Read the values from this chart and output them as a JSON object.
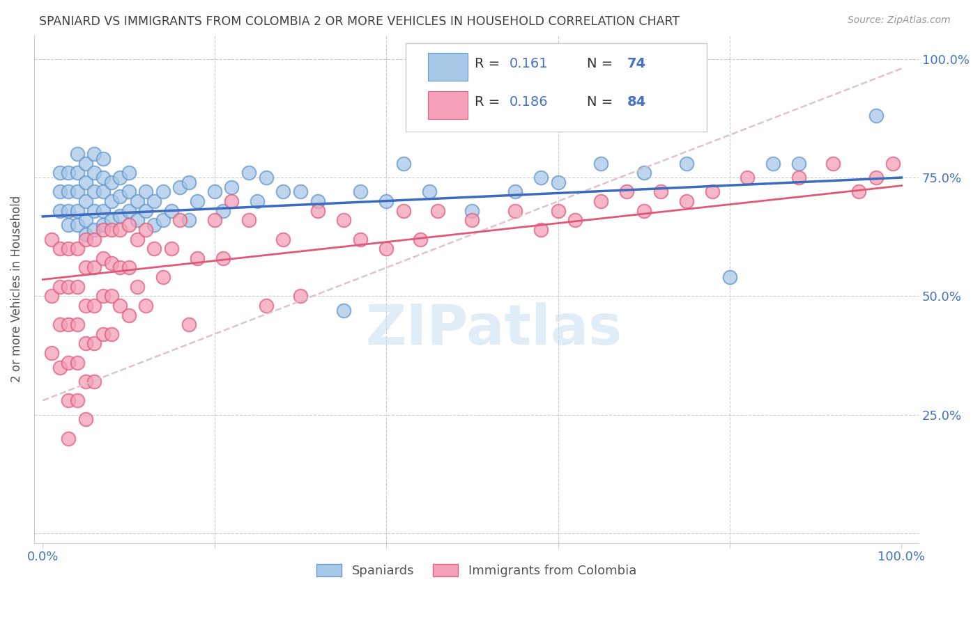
{
  "title": "SPANIARD VS IMMIGRANTS FROM COLOMBIA 2 OR MORE VEHICLES IN HOUSEHOLD CORRELATION CHART",
  "source": "Source: ZipAtlas.com",
  "ylabel": "2 or more Vehicles in Household",
  "yticks_labels": [
    "",
    "25.0%",
    "50.0%",
    "75.0%",
    "100.0%"
  ],
  "ytick_vals": [
    0.0,
    0.25,
    0.5,
    0.75,
    1.0
  ],
  "blue_color": "#a8c8e8",
  "pink_color": "#f4a0b8",
  "blue_edge_color": "#6699cc",
  "pink_edge_color": "#e06080",
  "blue_line_color": "#3a6bbf",
  "pink_line_color": "#e05878",
  "diag_line_color": "#ddbbcc",
  "axis_label_color": "#4472c4",
  "title_color": "#404040",
  "watermark_color": "#c8ddf0",
  "blue_R": 0.161,
  "pink_R": 0.186,
  "blue_N": 74,
  "pink_N": 84,
  "blue_scatter_x": [
    0.02,
    0.02,
    0.02,
    0.03,
    0.03,
    0.03,
    0.03,
    0.04,
    0.04,
    0.04,
    0.04,
    0.04,
    0.05,
    0.05,
    0.05,
    0.05,
    0.05,
    0.06,
    0.06,
    0.06,
    0.06,
    0.06,
    0.07,
    0.07,
    0.07,
    0.07,
    0.07,
    0.08,
    0.08,
    0.08,
    0.09,
    0.09,
    0.09,
    0.1,
    0.1,
    0.1,
    0.11,
    0.11,
    0.12,
    0.12,
    0.13,
    0.13,
    0.14,
    0.14,
    0.15,
    0.16,
    0.17,
    0.17,
    0.18,
    0.2,
    0.21,
    0.22,
    0.24,
    0.25,
    0.26,
    0.28,
    0.3,
    0.32,
    0.35,
    0.37,
    0.4,
    0.42,
    0.45,
    0.5,
    0.55,
    0.58,
    0.6,
    0.65,
    0.7,
    0.75,
    0.8,
    0.85,
    0.88,
    0.97
  ],
  "blue_scatter_y": [
    0.68,
    0.72,
    0.76,
    0.65,
    0.68,
    0.72,
    0.76,
    0.65,
    0.68,
    0.72,
    0.76,
    0.8,
    0.63,
    0.66,
    0.7,
    0.74,
    0.78,
    0.64,
    0.68,
    0.72,
    0.76,
    0.8,
    0.65,
    0.68,
    0.72,
    0.75,
    0.79,
    0.66,
    0.7,
    0.74,
    0.67,
    0.71,
    0.75,
    0.68,
    0.72,
    0.76,
    0.66,
    0.7,
    0.68,
    0.72,
    0.65,
    0.7,
    0.66,
    0.72,
    0.68,
    0.73,
    0.66,
    0.74,
    0.7,
    0.72,
    0.68,
    0.73,
    0.76,
    0.7,
    0.75,
    0.72,
    0.72,
    0.7,
    0.47,
    0.72,
    0.7,
    0.78,
    0.72,
    0.68,
    0.72,
    0.75,
    0.74,
    0.78,
    0.76,
    0.78,
    0.54,
    0.78,
    0.78,
    0.88
  ],
  "pink_scatter_x": [
    0.01,
    0.01,
    0.01,
    0.02,
    0.02,
    0.02,
    0.02,
    0.03,
    0.03,
    0.03,
    0.03,
    0.03,
    0.03,
    0.04,
    0.04,
    0.04,
    0.04,
    0.04,
    0.05,
    0.05,
    0.05,
    0.05,
    0.05,
    0.05,
    0.06,
    0.06,
    0.06,
    0.06,
    0.06,
    0.07,
    0.07,
    0.07,
    0.07,
    0.08,
    0.08,
    0.08,
    0.08,
    0.09,
    0.09,
    0.09,
    0.1,
    0.1,
    0.1,
    0.11,
    0.11,
    0.12,
    0.12,
    0.13,
    0.14,
    0.15,
    0.16,
    0.17,
    0.18,
    0.2,
    0.21,
    0.22,
    0.24,
    0.26,
    0.28,
    0.3,
    0.32,
    0.35,
    0.37,
    0.4,
    0.42,
    0.44,
    0.46,
    0.5,
    0.55,
    0.58,
    0.6,
    0.62,
    0.65,
    0.68,
    0.7,
    0.72,
    0.75,
    0.78,
    0.82,
    0.88,
    0.92,
    0.95,
    0.97,
    0.99
  ],
  "pink_scatter_y": [
    0.62,
    0.5,
    0.38,
    0.6,
    0.52,
    0.44,
    0.35,
    0.6,
    0.52,
    0.44,
    0.36,
    0.28,
    0.2,
    0.6,
    0.52,
    0.44,
    0.36,
    0.28,
    0.62,
    0.56,
    0.48,
    0.4,
    0.32,
    0.24,
    0.62,
    0.56,
    0.48,
    0.4,
    0.32,
    0.64,
    0.58,
    0.5,
    0.42,
    0.64,
    0.57,
    0.5,
    0.42,
    0.64,
    0.56,
    0.48,
    0.65,
    0.56,
    0.46,
    0.62,
    0.52,
    0.64,
    0.48,
    0.6,
    0.54,
    0.6,
    0.66,
    0.44,
    0.58,
    0.66,
    0.58,
    0.7,
    0.66,
    0.48,
    0.62,
    0.5,
    0.68,
    0.66,
    0.62,
    0.6,
    0.68,
    0.62,
    0.68,
    0.66,
    0.68,
    0.64,
    0.68,
    0.66,
    0.7,
    0.72,
    0.68,
    0.72,
    0.7,
    0.72,
    0.75,
    0.75,
    0.78,
    0.72,
    0.75,
    0.78
  ],
  "blue_line_intercept": 0.668,
  "blue_line_slope": 0.082,
  "pink_line_intercept": 0.535,
  "pink_line_slope": 0.198
}
